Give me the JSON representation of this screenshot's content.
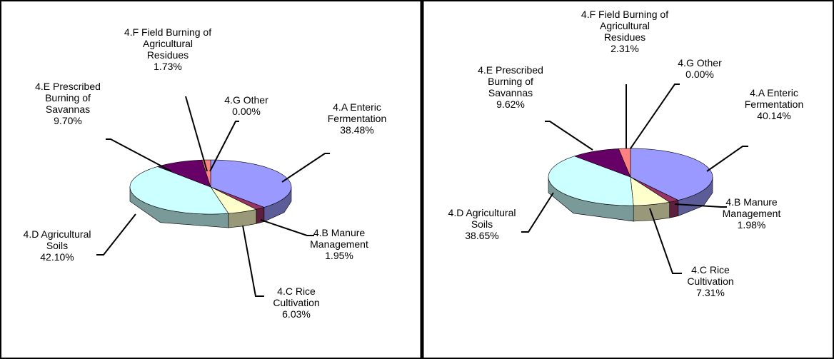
{
  "chart_data": [
    {
      "type": "pie",
      "categories": [
        "4.A Enteric Fermentation",
        "4.B Manure Management",
        "4.C Rice Cultivation",
        "4.D Agricultural Soils",
        "4.E Prescribed Burning of Savannas",
        "4.F Field Burning of Agricultural Residues",
        "4.G Other"
      ],
      "values": [
        38.48,
        1.95,
        6.03,
        42.1,
        9.7,
        1.73,
        0
      ],
      "value_labels": [
        "38.48%",
        "1.95%",
        "6.03%",
        "42.10%",
        "9.70%",
        "1.73%",
        "0.00%"
      ],
      "colors": [
        "#9999ff",
        "#993366",
        "#ffffcc",
        "#ccffff",
        "#660066",
        "#ff8080",
        "#0066cc"
      ]
    },
    {
      "type": "pie",
      "categories": [
        "4.A Enteric Fermentation",
        "4.B Manure Management",
        "4.C Rice Cultivation",
        "4.D Agricultural Soils",
        "4.E Prescribed Burning of Savannas",
        "4.F Field Burning of Agricultural Residues",
        "4.G Other"
      ],
      "values": [
        40.14,
        1.98,
        7.31,
        38.65,
        9.62,
        2.31,
        0
      ],
      "value_labels": [
        "40.14%",
        "1.98%",
        "7.31%",
        "38.65%",
        "9.62%",
        "2.31%",
        "0.00%"
      ],
      "colors": [
        "#9999ff",
        "#993366",
        "#ffffcc",
        "#ccffff",
        "#660066",
        "#ff8080",
        "#0066cc"
      ]
    }
  ]
}
